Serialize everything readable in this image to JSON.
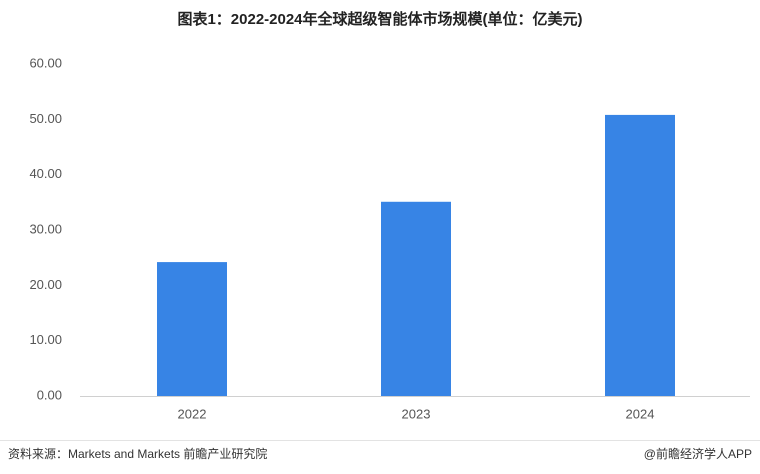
{
  "chart_data": {
    "type": "bar",
    "title": "图表1：2022-2024年全球超级智能体市场规模(单位：亿美元)",
    "categories": [
      "2022",
      "2023",
      "2024"
    ],
    "values": [
      24.2,
      35.1,
      50.8
    ],
    "color": "#3784e5",
    "ylim": [
      0,
      60
    ],
    "yticks": [
      {
        "value": 0,
        "label": "0.00"
      },
      {
        "value": 10,
        "label": "10.00"
      },
      {
        "value": 20,
        "label": "20.00"
      },
      {
        "value": 30,
        "label": "30.00"
      },
      {
        "value": 40,
        "label": "40.00"
      },
      {
        "value": 50,
        "label": "50.00"
      },
      {
        "value": 60,
        "label": "60.00"
      }
    ],
    "grid": false,
    "source": "资料来源：Markets and Markets 前瞻产业研究院",
    "credit": "@前瞻经济学人APP"
  }
}
